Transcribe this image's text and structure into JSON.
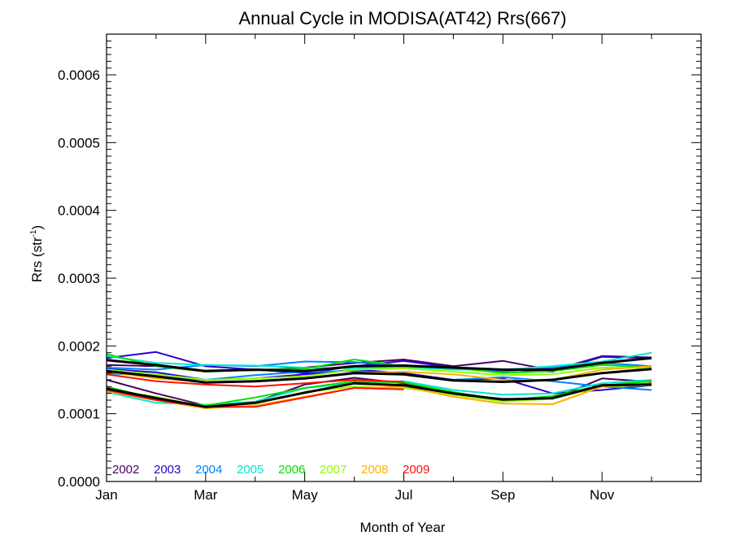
{
  "chart_data": {
    "type": "line",
    "title": "Annual Cycle in MODISA(AT42) Rrs(667)",
    "xlabel": "Month of Year",
    "ylabel_main": "Rrs (str",
    "ylabel_sup": "-1",
    "ylabel_close": ")",
    "xlim": [
      1,
      13
    ],
    "ylim": [
      0,
      0.00066
    ],
    "x_ticks": [
      {
        "x": 1,
        "label": "Jan"
      },
      {
        "x": 3,
        "label": "Mar"
      },
      {
        "x": 5,
        "label": "May"
      },
      {
        "x": 7,
        "label": "Jul"
      },
      {
        "x": 9,
        "label": "Sep"
      },
      {
        "x": 11,
        "label": "Nov"
      }
    ],
    "y_ticks": [
      {
        "y": 0.0,
        "label": "0.0000"
      },
      {
        "y": 0.0001,
        "label": "0.0001"
      },
      {
        "y": 0.0002,
        "label": "0.0002"
      },
      {
        "y": 0.0003,
        "label": "0.0003"
      },
      {
        "y": 0.0004,
        "label": "0.0004"
      },
      {
        "y": 0.0005,
        "label": "0.0005"
      },
      {
        "y": 0.0006,
        "label": "0.0006"
      }
    ],
    "legend_position": "bottom-left",
    "grid": false,
    "series": [
      {
        "name": "2002",
        "color": "#4a0060",
        "x": [
          1,
          2,
          3,
          4,
          5,
          6,
          7,
          8,
          9,
          10,
          11,
          12
        ],
        "upper": [
          0.000172,
          0.00017,
          0.000163,
          0.000164,
          0.000168,
          0.000175,
          0.00018,
          0.00017,
          0.000178,
          0.000164,
          0.000185,
          0.000183
        ],
        "lower": [
          0.00015,
          0.00013,
          0.000112,
          0.000117,
          0.000143,
          0.000153,
          0.000145,
          0.000128,
          0.000122,
          0.000122,
          0.000152,
          0.000147
        ]
      },
      {
        "name": "2003",
        "color": "#2a00d0",
        "x": [
          1,
          2,
          3,
          4,
          5,
          6,
          7,
          8,
          9,
          10,
          11,
          12
        ],
        "upper": [
          0.000182,
          0.000191,
          0.00017,
          0.000165,
          0.00016,
          0.00017,
          0.000178,
          0.000168,
          0.000165,
          0.000162,
          0.000184,
          0.000182
        ],
        "lower": [
          0.000166,
          0.000161,
          0.00015,
          0.000152,
          0.000158,
          0.000165,
          0.00016,
          0.00015,
          0.000152,
          0.00013,
          0.000135,
          0.000142
        ]
      },
      {
        "name": "2004",
        "color": "#0080ff",
        "x": [
          1,
          2,
          3,
          4,
          5,
          6,
          7,
          8,
          9,
          10,
          11,
          12
        ],
        "upper": [
          0.000168,
          0.000165,
          0.000172,
          0.00017,
          0.000177,
          0.000176,
          0.00017,
          0.000168,
          0.000162,
          0.000168,
          0.000175,
          0.00017
        ],
        "lower": [
          0.00016,
          0.000155,
          0.00015,
          0.000157,
          0.000162,
          0.000163,
          0.000158,
          0.00015,
          0.000154,
          0.000148,
          0.00014,
          0.000135
        ]
      },
      {
        "name": "2005",
        "color": "#00e8d0",
        "x": [
          1,
          2,
          3,
          4,
          5,
          6,
          7,
          8,
          9,
          10,
          11,
          12
        ],
        "upper": [
          0.000185,
          0.000175,
          0.000172,
          0.000171,
          0.000168,
          0.000167,
          0.000169,
          0.000165,
          0.000165,
          0.00017,
          0.000177,
          0.00019
        ],
        "lower": [
          0.000132,
          0.000116,
          0.000113,
          0.000118,
          0.000138,
          0.000145,
          0.000148,
          0.000135,
          0.000128,
          0.00013,
          0.000145,
          0.00015
        ]
      },
      {
        "name": "2006",
        "color": "#00e000",
        "x": [
          1,
          2,
          3,
          4,
          5,
          6,
          7,
          8,
          9,
          10,
          11,
          12
        ],
        "upper": [
          0.000188,
          0.00017,
          0.000162,
          0.000165,
          0.000166,
          0.00018,
          0.00017,
          0.000168,
          0.00016,
          0.000163,
          0.000172,
          0.000168
        ],
        "lower": [
          0.00014,
          0.000122,
          0.000112,
          0.000124,
          0.000138,
          0.000148,
          0.000146,
          0.000132,
          0.00012,
          0.000126,
          0.000142,
          0.000148
        ]
      },
      {
        "name": "2007",
        "color": "#90ff00",
        "x": [
          1,
          2,
          3,
          4,
          5,
          6,
          7,
          8,
          9,
          10,
          11,
          12
        ],
        "upper": [
          0.000165,
          0.000158,
          0.00015,
          0.000152,
          0.000155,
          0.000165,
          0.000167,
          0.000162,
          0.000157,
          0.000158,
          0.000168,
          0.000167
        ],
        "lower": [
          0.000135,
          0.000125,
          0.00011,
          0.000115,
          0.000132,
          0.00014,
          0.000138,
          0.000128,
          0.000118,
          0.000122,
          0.00014,
          0.000142
        ]
      },
      {
        "name": "2008",
        "color": "#ffb000",
        "x": [
          1,
          2,
          3,
          4,
          5,
          6,
          7,
          8,
          9,
          10,
          11,
          12
        ],
        "upper": [
          0.000162,
          0.000152,
          0.000147,
          0.000148,
          0.000152,
          0.00016,
          0.000162,
          0.000158,
          0.00015,
          0.00015,
          0.000165,
          0.00017
        ],
        "lower": [
          0.000133,
          0.00012,
          0.000108,
          0.000112,
          0.000125,
          0.000138,
          0.00014,
          0.000125,
          0.000115,
          0.000114,
          0.00014,
          0.000145
        ]
      },
      {
        "name": "2009",
        "color": "#ff1000",
        "x": [
          1,
          2,
          3,
          4,
          5,
          6,
          7
        ],
        "upper": [
          0.000158,
          0.000148,
          0.000143,
          0.00014,
          0.000145,
          0.00015,
          0.000147
        ],
        "lower": [
          0.000135,
          0.00012,
          0.00011,
          0.00011,
          0.000124,
          0.000138,
          0.000136
        ]
      }
    ],
    "climatology": {
      "color": "#000000",
      "x": [
        1,
        2,
        3,
        4,
        5,
        6,
        7,
        8,
        9,
        10,
        11,
        12
      ],
      "upper": [
        0.000179,
        0.000172,
        0.000163,
        0.000165,
        0.000163,
        0.00017,
        0.000171,
        0.000168,
        0.000165,
        0.000165,
        0.000175,
        0.000182
      ],
      "middle": [
        0.000163,
        0.000155,
        0.000146,
        0.000148,
        0.000152,
        0.00016,
        0.000158,
        0.000149,
        0.000147,
        0.00015,
        0.00016,
        0.000166
      ],
      "lower": [
        0.000137,
        0.000123,
        0.00011,
        0.000116,
        0.000131,
        0.000145,
        0.000142,
        0.00013,
        0.000121,
        0.000123,
        0.000142,
        0.000143
      ]
    }
  }
}
